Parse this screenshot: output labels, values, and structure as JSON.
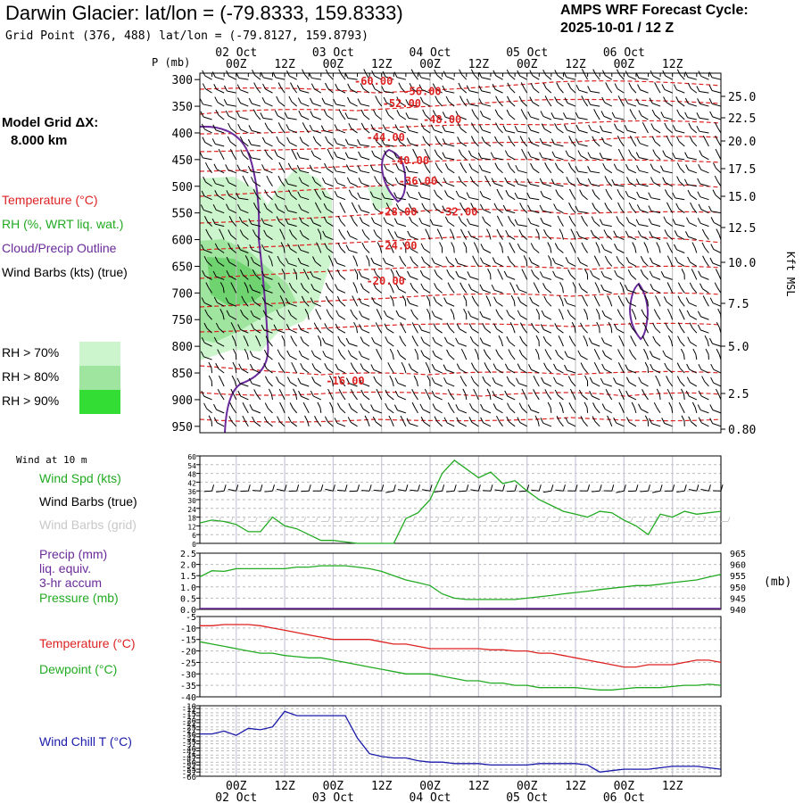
{
  "header": {
    "title": "Darwin Glacier:  lat/lon = (-79.8333, 159.8333)",
    "subtitle": "Grid Point (376, 488) lat/lon = (-79.8127, 159.8793)",
    "cycle_line1": "AMPS WRF Forecast Cycle:",
    "cycle_line2": "2025-10-01 / 12  Z",
    "grid_label_1": "Model Grid ΔX:",
    "grid_label_2": "8.000 km"
  },
  "colors": {
    "temperature": "#dd2222",
    "rh": "#22aa22",
    "cloud": "#6a2a9a",
    "rh70": "#cdf5cd",
    "rh80": "#9fe59f",
    "rh90": "#33dd33",
    "wind_chill": "#1a1aaa",
    "grid_dash": "#bbbbbb"
  },
  "time_axis": {
    "top_hours": [
      "00Z",
      "12Z",
      "00Z",
      "12Z",
      "00Z",
      "12Z",
      "00Z",
      "12Z",
      "00Z",
      "12Z"
    ],
    "top_dates": [
      "02 Oct",
      "03 Oct",
      "04 Oct",
      "05 Oct",
      "06 Oct"
    ],
    "bottom_hours": [
      "00Z",
      "12Z",
      "00Z",
      "12Z",
      "00Z",
      "12Z",
      "00Z",
      "12Z",
      "00Z",
      "12Z"
    ],
    "bottom_dates": [
      "02 Oct",
      "03 Oct",
      "04 Oct",
      "05 Oct",
      "06 Oct"
    ]
  },
  "legend": {
    "temperature": "Temperature (°C)",
    "rh": "RH (%, WRT liq. wat.)",
    "cloud": "Cloud/Precip Outline",
    "wind_barbs": "Wind Barbs (kts) (true)",
    "rh70": "RH > 70%",
    "rh80": "RH > 80%",
    "rh90": "RH > 90%",
    "p_unit": "P (mb)",
    "height_unit": "Kft MSL"
  },
  "chart_data": [
    {
      "type": "contour",
      "panel": "upper_air",
      "pressure_ticks": [
        300,
        350,
        400,
        450,
        500,
        550,
        600,
        650,
        700,
        750,
        800,
        850,
        900,
        950
      ],
      "height_ticks_kft": [
        "25.0",
        "22.5",
        "20.0",
        "17.5",
        "15.0",
        "12.5",
        "10.0",
        "7.5",
        "5.0",
        "2.5",
        "0.80"
      ],
      "temperature_contour_labels": [
        "-60.00",
        "-56.00",
        "-52.00",
        "-48.00",
        "-44.00",
        "-40.00",
        "-36.00",
        "-32.00",
        "-28.00",
        "-24.00",
        "-20.00",
        "-16.00"
      ],
      "temperature_contour_label_points": [
        {
          "label": "-60.00",
          "t": 34,
          "p": 303
        },
        {
          "label": "-56.00",
          "t": 46,
          "p": 322
        },
        {
          "label": "-52.00",
          "t": 41,
          "p": 345
        },
        {
          "label": "-48.00",
          "t": 51,
          "p": 375
        },
        {
          "label": "-44.00",
          "t": 37,
          "p": 408
        },
        {
          "label": "-40.00",
          "t": 43,
          "p": 452
        },
        {
          "label": "-36.00",
          "t": 45,
          "p": 490
        },
        {
          "label": "-28.00",
          "t": 40,
          "p": 548
        },
        {
          "label": "-32.00",
          "t": 55,
          "p": 548
        },
        {
          "label": "-24.00",
          "t": 40,
          "p": 612
        },
        {
          "label": "-20.00",
          "t": 37,
          "p": 678
        },
        {
          "label": "-16.00",
          "t": 27,
          "p": 865
        }
      ]
    },
    {
      "type": "line",
      "panel": "wind_speed",
      "label_top": "Wind at 10 m",
      "labels": [
        "Wind Spd (kts)",
        "Wind Barbs (true)",
        "Wind Barbs (grid)"
      ],
      "y_ticks": [
        60,
        54,
        48,
        42,
        36,
        30,
        24,
        18,
        12,
        6,
        0
      ],
      "ylim": [
        0,
        60
      ],
      "series": [
        {
          "name": "Wind Spd (kts)",
          "x": [
            -9,
            -6,
            -3,
            0,
            3,
            6,
            9,
            12,
            15,
            18,
            21,
            24,
            27,
            30,
            33,
            36,
            39,
            42,
            45,
            48,
            51,
            54,
            57,
            60,
            63,
            66,
            69,
            72,
            75,
            78,
            81,
            84,
            87,
            90,
            93,
            96,
            99,
            102,
            105,
            108,
            111,
            114,
            117,
            120
          ],
          "y": [
            14,
            16,
            15,
            13,
            8,
            8,
            18,
            12,
            10,
            6,
            2,
            2,
            1,
            0,
            0,
            0,
            0,
            17,
            21,
            30,
            48,
            57,
            51,
            45,
            49,
            41,
            43,
            36,
            30,
            26,
            22,
            20,
            18,
            22,
            21,
            16,
            12,
            6,
            20,
            18,
            22,
            20,
            21,
            22
          ]
        }
      ]
    },
    {
      "type": "line",
      "panel": "pressure",
      "labels": [
        "Precip (mm)",
        "liq. equiv.",
        "3-hr accum",
        "Pressure (mb)"
      ],
      "y_ticks_left": [
        "2.5",
        "2.0",
        "1.5",
        "1.0",
        "0.5",
        "0.0"
      ],
      "y_ticks_right": [
        965,
        960,
        955,
        950,
        945,
        940
      ],
      "ylim_right": [
        940,
        965
      ],
      "unit_right": "(mb)",
      "series": [
        {
          "name": "Pressure (mb)",
          "x": [
            -9,
            -6,
            -3,
            0,
            3,
            6,
            9,
            12,
            15,
            18,
            21,
            24,
            27,
            30,
            33,
            36,
            39,
            42,
            45,
            48,
            51,
            54,
            57,
            60,
            63,
            66,
            69,
            72,
            75,
            78,
            81,
            84,
            87,
            90,
            93,
            96,
            99,
            102,
            105,
            108,
            111,
            114,
            117,
            120
          ],
          "y": [
            954.5,
            957.2,
            956.9,
            958.1,
            958.1,
            958.1,
            958.1,
            958.1,
            958.8,
            958.8,
            959.4,
            959.4,
            959.4,
            958.8,
            958.1,
            956.9,
            955,
            953.1,
            951.9,
            950.6,
            946.9,
            945,
            944.4,
            944.4,
            944.4,
            944.4,
            944.4,
            945,
            945.6,
            946.2,
            946.9,
            947.5,
            948.1,
            948.8,
            949.4,
            950,
            950.6,
            950.6,
            951.2,
            951.9,
            952.5,
            953.1,
            954.4,
            955.6
          ]
        },
        {
          "name": "Precip (mm)",
          "x": [
            -9,
            120
          ],
          "y": [
            0,
            0
          ]
        }
      ]
    },
    {
      "type": "line",
      "panel": "temperature",
      "labels": [
        "Temperature (°C)",
        "Dewpoint (°C)"
      ],
      "y_ticks": [
        -5,
        -10,
        -15,
        -20,
        -25,
        -30,
        -35,
        -40
      ],
      "ylim": [
        -40,
        -5
      ],
      "series": [
        {
          "name": "Temperature (°C)",
          "x": [
            -9,
            -6,
            -3,
            0,
            3,
            6,
            9,
            12,
            15,
            18,
            21,
            24,
            27,
            30,
            33,
            36,
            39,
            42,
            45,
            48,
            51,
            54,
            57,
            60,
            63,
            66,
            69,
            72,
            75,
            78,
            81,
            84,
            87,
            90,
            93,
            96,
            99,
            102,
            105,
            108,
            111,
            114,
            117,
            120
          ],
          "y": [
            -9,
            -9,
            -8.5,
            -8.5,
            -8.5,
            -9,
            -10,
            -11,
            -12,
            -13,
            -14,
            -15,
            -15,
            -15,
            -15,
            -16,
            -17,
            -17,
            -18,
            -19,
            -19,
            -19,
            -19,
            -19,
            -19.5,
            -19.5,
            -20,
            -20,
            -21,
            -21,
            -22,
            -23,
            -24,
            -25,
            -26,
            -27,
            -27,
            -26,
            -26,
            -26,
            -25,
            -24,
            -24,
            -25
          ]
        },
        {
          "name": "Dewpoint (°C)",
          "x": [
            -9,
            -6,
            -3,
            0,
            3,
            6,
            9,
            12,
            15,
            18,
            21,
            24,
            27,
            30,
            33,
            36,
            39,
            42,
            45,
            48,
            51,
            54,
            57,
            60,
            63,
            66,
            69,
            72,
            75,
            78,
            81,
            84,
            87,
            90,
            93,
            96,
            99,
            102,
            105,
            108,
            111,
            114,
            117,
            120
          ],
          "y": [
            -16,
            -17,
            -18,
            -19,
            -20,
            -21,
            -21,
            -22,
            -22.5,
            -23,
            -23,
            -24,
            -25,
            -26,
            -27,
            -28,
            -29,
            -30,
            -30,
            -30,
            -31,
            -32,
            -33,
            -33,
            -34,
            -34,
            -35,
            -35,
            -36,
            -36,
            -36,
            -36,
            -36.5,
            -37,
            -37,
            -36.5,
            -36,
            -36,
            -36,
            -35.5,
            -35,
            -35,
            -34.5,
            -35
          ]
        }
      ]
    },
    {
      "type": "line",
      "panel": "wind_chill",
      "labels": [
        "Wind Chill T (°C)"
      ],
      "y_ticks": [
        -10,
        -12,
        -15,
        -17,
        -20,
        -22,
        -25,
        -27,
        -30,
        -32,
        -35,
        -37,
        -40,
        -42,
        -45,
        -47,
        -50,
        -52,
        -55,
        -57,
        -60
      ],
      "ylim": [
        -60,
        -10
      ],
      "series": [
        {
          "name": "Wind Chill T (°C)",
          "x": [
            -9,
            -6,
            -3,
            0,
            3,
            6,
            9,
            12,
            15,
            18,
            21,
            24,
            27,
            30,
            33,
            36,
            39,
            42,
            45,
            48,
            51,
            54,
            57,
            60,
            63,
            66,
            69,
            72,
            75,
            78,
            81,
            84,
            87,
            90,
            93,
            96,
            99,
            102,
            105,
            108,
            111,
            114,
            117,
            120
          ],
          "y": [
            -30,
            -30,
            -28,
            -31,
            -26,
            -27,
            -25,
            -14,
            -17,
            -17,
            -17,
            -17,
            -17,
            -33,
            -44,
            -46,
            -47,
            -47,
            -49,
            -50,
            -50,
            -51,
            -51,
            -51,
            -52,
            -52,
            -52,
            -52,
            -51,
            -51,
            -51,
            -51,
            -52,
            -57,
            -56,
            -55,
            -55,
            -55,
            -54,
            -53,
            -53,
            -53,
            -54,
            -55
          ]
        }
      ]
    }
  ]
}
